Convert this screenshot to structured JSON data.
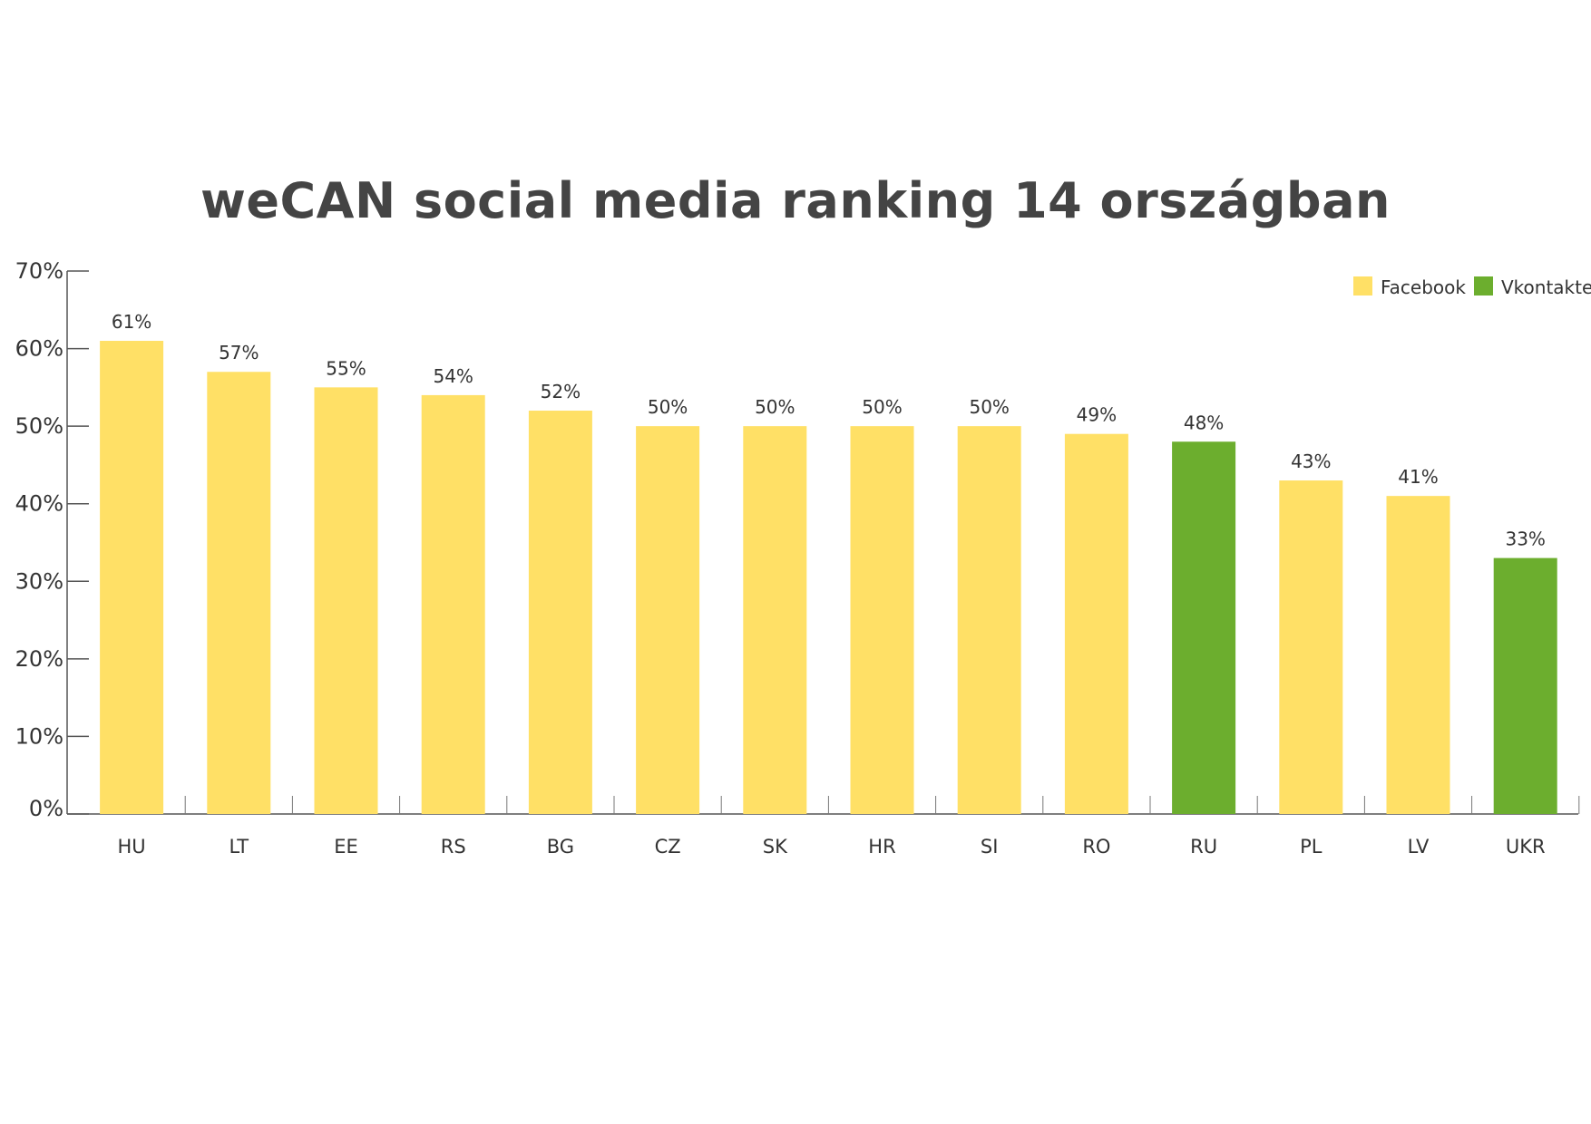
{
  "chart_data": {
    "type": "bar",
    "title": "weCAN social media ranking 14 országban",
    "categories": [
      "HU",
      "LT",
      "EE",
      "RS",
      "BG",
      "CZ",
      "SK",
      "HR",
      "SI",
      "RO",
      "RU",
      "PL",
      "LV",
      "UKR"
    ],
    "values": [
      61,
      57,
      55,
      54,
      52,
      50,
      50,
      50,
      50,
      49,
      48,
      43,
      41,
      33
    ],
    "value_labels": [
      "61%",
      "57%",
      "55%",
      "54%",
      "52%",
      "50%",
      "50%",
      "50%",
      "50%",
      "49%",
      "48%",
      "43%",
      "41%",
      "33%"
    ],
    "series_by_category": [
      "Facebook",
      "Facebook",
      "Facebook",
      "Facebook",
      "Facebook",
      "Facebook",
      "Facebook",
      "Facebook",
      "Facebook",
      "Facebook",
      "Vkontakte",
      "Facebook",
      "Facebook",
      "Vkontakte"
    ],
    "legend": [
      {
        "name": "Facebook",
        "color": "#FFE066"
      },
      {
        "name": "Vkontakte",
        "color": "#6CAE2E"
      }
    ],
    "legend_position": "top-right",
    "ylim": [
      0,
      70
    ],
    "yticks": [
      0,
      10,
      20,
      30,
      40,
      50,
      60,
      70
    ],
    "ytick_labels": [
      "0%",
      "10%",
      "20%",
      "30%",
      "40%",
      "50%",
      "60%",
      "70%"
    ],
    "xlabel": "",
    "ylabel": "",
    "grid": false
  }
}
